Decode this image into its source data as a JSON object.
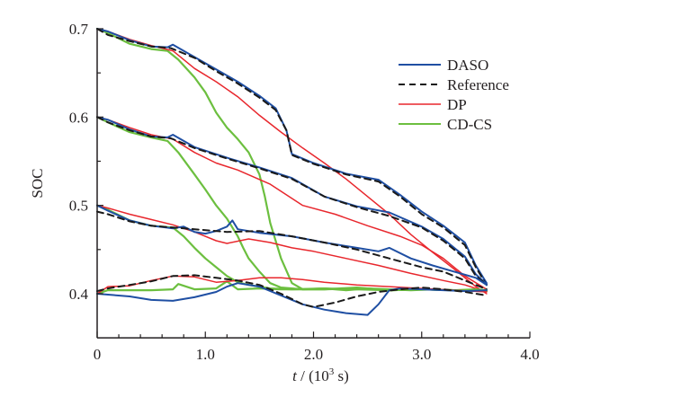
{
  "chart_data": {
    "type": "line",
    "title": "",
    "xlabel": "t / (10^3 s)",
    "xlabel_parts": {
      "var": "t",
      "rest_before": " / (10",
      "sup": "3",
      "rest_after": " s)"
    },
    "ylabel": "SOC",
    "xlim": [
      0,
      4.0
    ],
    "ylim": [
      0.35,
      0.7
    ],
    "xticks": [
      0,
      1.0,
      2.0,
      3.0,
      4.0
    ],
    "xtick_labels": [
      "0",
      "1.0",
      "2.0",
      "3.0",
      "4.0"
    ],
    "x_minor_step": 0.2,
    "yticks": [
      0.4,
      0.5,
      0.6,
      0.7
    ],
    "ytick_labels": [
      "0.4",
      "0.5",
      "0.6",
      "0.7"
    ],
    "y_minor_step": 0.05,
    "grid": false,
    "legend_position": "top-right",
    "legend": [
      {
        "name": "DASO",
        "color": "#1f4fa3",
        "style": "solid"
      },
      {
        "name": "Reference",
        "color": "#1a1a1a",
        "style": "dashed"
      },
      {
        "name": "DP",
        "color": "#e8272d",
        "style": "solid"
      },
      {
        "name": "CD-CS",
        "color": "#6cbf3f",
        "style": "solid"
      }
    ],
    "groups": [
      {
        "initial_soc": 0.7,
        "series": [
          {
            "name": "Reference",
            "x": [
              0,
              0.1,
              0.3,
              0.5,
              0.68,
              0.9,
              1.1,
              1.3,
              1.5,
              1.65,
              1.75,
              1.8,
              2.0,
              2.3,
              2.6,
              2.8,
              3.0,
              3.2,
              3.4,
              3.5,
              3.6
            ],
            "y": [
              0.7,
              0.693,
              0.686,
              0.68,
              0.678,
              0.667,
              0.652,
              0.638,
              0.622,
              0.608,
              0.585,
              0.557,
              0.547,
              0.535,
              0.527,
              0.51,
              0.49,
              0.475,
              0.455,
              0.43,
              0.41
            ]
          },
          {
            "name": "DASO",
            "x": [
              0,
              0.1,
              0.3,
              0.5,
              0.65,
              0.7,
              0.9,
              1.1,
              1.3,
              1.5,
              1.65,
              1.75,
              1.8,
              2.0,
              2.3,
              2.6,
              2.8,
              3.0,
              3.2,
              3.4,
              3.5,
              3.6
            ],
            "y": [
              0.7,
              0.697,
              0.687,
              0.68,
              0.679,
              0.682,
              0.668,
              0.654,
              0.64,
              0.624,
              0.61,
              0.585,
              0.558,
              0.548,
              0.536,
              0.529,
              0.512,
              0.493,
              0.477,
              0.458,
              0.432,
              0.412
            ]
          },
          {
            "name": "DP",
            "x": [
              0,
              0.1,
              0.3,
              0.5,
              0.7,
              0.9,
              1.1,
              1.3,
              1.5,
              1.7,
              1.9,
              2.1,
              2.3,
              2.5,
              2.7,
              2.9,
              3.1,
              3.3,
              3.5,
              3.6
            ],
            "y": [
              0.7,
              0.697,
              0.688,
              0.681,
              0.675,
              0.655,
              0.64,
              0.623,
              0.602,
              0.583,
              0.565,
              0.548,
              0.53,
              0.51,
              0.49,
              0.467,
              0.447,
              0.428,
              0.408,
              0.4
            ]
          },
          {
            "name": "CD-CS",
            "x": [
              0,
              0.1,
              0.3,
              0.5,
              0.65,
              0.75,
              0.9,
              1.0,
              1.1,
              1.2,
              1.3,
              1.4,
              1.5,
              1.55,
              1.6,
              1.7,
              1.8,
              1.9,
              2.1,
              2.4,
              2.7,
              3.0,
              3.3,
              3.6
            ],
            "y": [
              0.7,
              0.695,
              0.683,
              0.677,
              0.675,
              0.665,
              0.645,
              0.628,
              0.605,
              0.588,
              0.575,
              0.56,
              0.535,
              0.51,
              0.48,
              0.44,
              0.412,
              0.405,
              0.405,
              0.407,
              0.404,
              0.405,
              0.404,
              0.403
            ]
          }
        ]
      },
      {
        "initial_soc": 0.6,
        "series": [
          {
            "name": "Reference",
            "x": [
              0,
              0.1,
              0.3,
              0.5,
              0.68,
              0.9,
              1.2,
              1.5,
              1.8,
              2.1,
              2.4,
              2.7,
              3.0,
              3.2,
              3.4,
              3.5,
              3.6
            ],
            "y": [
              0.6,
              0.594,
              0.585,
              0.578,
              0.576,
              0.565,
              0.553,
              0.542,
              0.53,
              0.51,
              0.498,
              0.488,
              0.475,
              0.46,
              0.44,
              0.42,
              0.41
            ]
          },
          {
            "name": "DASO",
            "x": [
              0,
              0.1,
              0.3,
              0.5,
              0.65,
              0.7,
              0.9,
              1.2,
              1.5,
              1.8,
              2.1,
              2.4,
              2.7,
              3.0,
              3.2,
              3.4,
              3.5,
              3.6
            ],
            "y": [
              0.6,
              0.597,
              0.586,
              0.578,
              0.577,
              0.58,
              0.566,
              0.554,
              0.543,
              0.531,
              0.51,
              0.499,
              0.492,
              0.476,
              0.462,
              0.442,
              0.422,
              0.411
            ]
          },
          {
            "name": "DP",
            "x": [
              0,
              0.1,
              0.3,
              0.5,
              0.7,
              0.9,
              1.1,
              1.3,
              1.6,
              1.9,
              2.2,
              2.5,
              2.8,
              3.0,
              3.2,
              3.4,
              3.6
            ],
            "y": [
              0.6,
              0.597,
              0.588,
              0.58,
              0.575,
              0.56,
              0.548,
              0.54,
              0.524,
              0.5,
              0.49,
              0.477,
              0.465,
              0.455,
              0.44,
              0.42,
              0.405
            ]
          },
          {
            "name": "CD-CS",
            "x": [
              0,
              0.1,
              0.3,
              0.5,
              0.65,
              0.75,
              0.9,
              1.0,
              1.1,
              1.2,
              1.3,
              1.35,
              1.4,
              1.5,
              1.6,
              1.7,
              1.9,
              2.1,
              2.4,
              2.7,
              3.0,
              3.3,
              3.6
            ],
            "y": [
              0.6,
              0.594,
              0.583,
              0.577,
              0.573,
              0.56,
              0.535,
              0.518,
              0.5,
              0.485,
              0.465,
              0.452,
              0.44,
              0.425,
              0.412,
              0.407,
              0.405,
              0.405,
              0.406,
              0.404,
              0.405,
              0.404,
              0.403
            ]
          }
        ]
      },
      {
        "initial_soc": 0.5,
        "series": [
          {
            "name": "Reference",
            "x": [
              0,
              0.1,
              0.3,
              0.5,
              0.7,
              0.9,
              1.2,
              1.5,
              1.8,
              2.1,
              2.4,
              2.7,
              3.0,
              3.2,
              3.4,
              3.6
            ],
            "y": [
              0.493,
              0.49,
              0.482,
              0.477,
              0.475,
              0.473,
              0.47,
              0.471,
              0.465,
              0.458,
              0.45,
              0.44,
              0.43,
              0.425,
              0.415,
              0.405
            ]
          },
          {
            "name": "DASO",
            "x": [
              0,
              0.1,
              0.3,
              0.5,
              0.7,
              0.8,
              0.9,
              1.0,
              1.1,
              1.2,
              1.25,
              1.3,
              1.5,
              1.8,
              2.1,
              2.4,
              2.6,
              2.7,
              2.9,
              3.1,
              3.3,
              3.5,
              3.6
            ],
            "y": [
              0.5,
              0.494,
              0.483,
              0.477,
              0.474,
              0.476,
              0.47,
              0.468,
              0.471,
              0.476,
              0.483,
              0.473,
              0.469,
              0.465,
              0.458,
              0.452,
              0.448,
              0.452,
              0.44,
              0.432,
              0.425,
              0.418,
              0.41
            ]
          },
          {
            "name": "DP",
            "x": [
              0,
              0.1,
              0.3,
              0.5,
              0.7,
              0.9,
              1.1,
              1.2,
              1.4,
              1.6,
              1.8,
              2.0,
              2.3,
              2.6,
              2.9,
              3.2,
              3.4,
              3.6
            ],
            "y": [
              0.5,
              0.497,
              0.49,
              0.484,
              0.478,
              0.47,
              0.46,
              0.457,
              0.462,
              0.458,
              0.452,
              0.448,
              0.44,
              0.432,
              0.423,
              0.415,
              0.41,
              0.402
            ]
          },
          {
            "name": "CD-CS",
            "x": [
              0,
              0.1,
              0.3,
              0.5,
              0.7,
              0.8,
              0.9,
              1.0,
              1.1,
              1.2,
              1.3,
              1.4,
              1.5,
              1.6,
              1.8,
              2.1,
              2.4,
              2.7,
              3.0,
              3.3,
              3.6
            ],
            "y": [
              0.5,
              0.495,
              0.483,
              0.477,
              0.475,
              0.465,
              0.452,
              0.44,
              0.43,
              0.42,
              0.413,
              0.41,
              0.408,
              0.406,
              0.405,
              0.406,
              0.405,
              0.404,
              0.405,
              0.404,
              0.403
            ]
          }
        ]
      },
      {
        "initial_soc": 0.4,
        "series": [
          {
            "name": "Reference",
            "x": [
              0,
              0.1,
              0.3,
              0.5,
              0.7,
              0.9,
              1.1,
              1.3,
              1.5,
              1.7,
              1.9,
              2.0,
              2.2,
              2.4,
              2.6,
              2.8,
              3.0,
              3.2,
              3.4,
              3.6
            ],
            "y": [
              0.403,
              0.406,
              0.41,
              0.414,
              0.42,
              0.421,
              0.418,
              0.415,
              0.41,
              0.4,
              0.388,
              0.385,
              0.39,
              0.397,
              0.402,
              0.405,
              0.407,
              0.405,
              0.402,
              0.398
            ]
          },
          {
            "name": "DASO",
            "x": [
              0,
              0.1,
              0.3,
              0.5,
              0.7,
              0.9,
              1.1,
              1.2,
              1.3,
              1.5,
              1.7,
              1.9,
              2.1,
              2.3,
              2.5,
              2.6,
              2.7,
              2.8,
              3.0,
              3.2,
              3.4,
              3.6
            ],
            "y": [
              0.4,
              0.399,
              0.397,
              0.393,
              0.392,
              0.396,
              0.402,
              0.408,
              0.412,
              0.408,
              0.398,
              0.388,
              0.382,
              0.378,
              0.376,
              0.388,
              0.404,
              0.406,
              0.405,
              0.404,
              0.403,
              0.404
            ]
          },
          {
            "name": "DP",
            "x": [
              0,
              0.1,
              0.3,
              0.5,
              0.7,
              0.9,
              1.1,
              1.3,
              1.5,
              1.7,
              1.9,
              2.1,
              2.4,
              2.7,
              3.0,
              3.3,
              3.6
            ],
            "y": [
              0.4,
              0.408,
              0.409,
              0.415,
              0.42,
              0.419,
              0.413,
              0.415,
              0.418,
              0.418,
              0.416,
              0.413,
              0.41,
              0.408,
              0.406,
              0.404,
              0.402
            ]
          },
          {
            "name": "CD-CS",
            "x": [
              0,
              0.1,
              0.3,
              0.5,
              0.7,
              0.75,
              0.9,
              1.1,
              1.2,
              1.3,
              1.5,
              1.7,
              1.9,
              2.1,
              2.3,
              2.5,
              2.7,
              2.9,
              3.1,
              3.3,
              3.5,
              3.6
            ],
            "y": [
              0.4,
              0.404,
              0.404,
              0.404,
              0.405,
              0.411,
              0.405,
              0.406,
              0.414,
              0.405,
              0.406,
              0.405,
              0.405,
              0.406,
              0.404,
              0.406,
              0.405,
              0.404,
              0.405,
              0.404,
              0.405,
              0.404
            ]
          }
        ]
      }
    ]
  }
}
